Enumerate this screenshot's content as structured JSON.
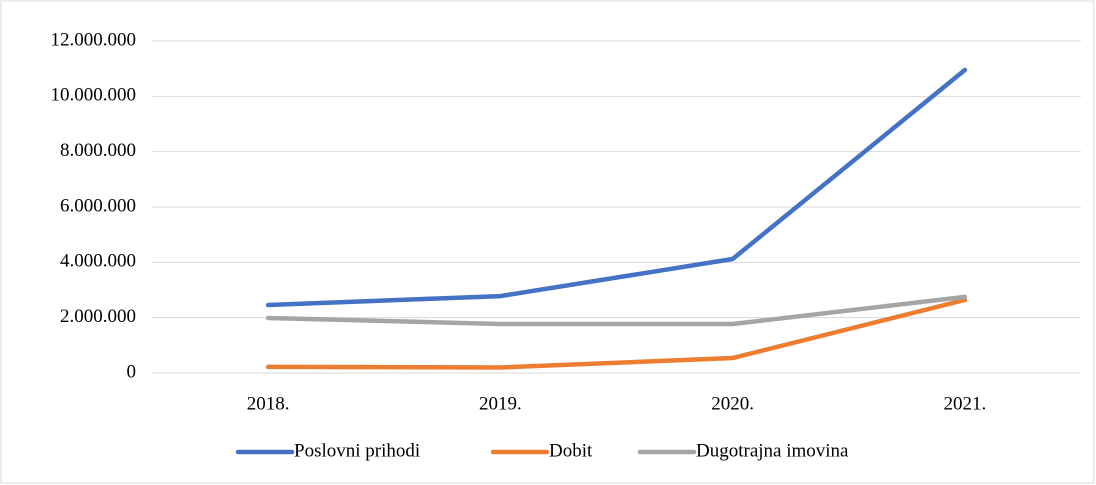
{
  "chart_data": {
    "type": "line",
    "categories": [
      "2018.",
      "2019.",
      "2020.",
      "2021."
    ],
    "series": [
      {
        "name": "Poslovni prihodi",
        "color": "#4472c4",
        "values": [
          2460000,
          2780000,
          4120000,
          10950000
        ]
      },
      {
        "name": "Dobit",
        "color": "#ed7d31",
        "values": [
          220000,
          200000,
          540000,
          2640000
        ]
      },
      {
        "name": "Dugotrajna imovina",
        "color": "#a5a5a5",
        "values": [
          1990000,
          1770000,
          1770000,
          2750000
        ]
      }
    ],
    "ylim": [
      0,
      12000000
    ],
    "yticks": [
      0,
      {
        "value": 2000000,
        "label": "2.000.000"
      },
      {
        "value": 4000000,
        "label": "4.000.000"
      },
      {
        "value": 6000000,
        "label": "6.000.000"
      },
      {
        "value": 8000000,
        "label": "8.000.000"
      },
      {
        "value": 10000000,
        "label": "10.000.000"
      },
      {
        "value": 12000000,
        "label": "12.000.000"
      }
    ],
    "grid": true,
    "legend": "bottom"
  }
}
